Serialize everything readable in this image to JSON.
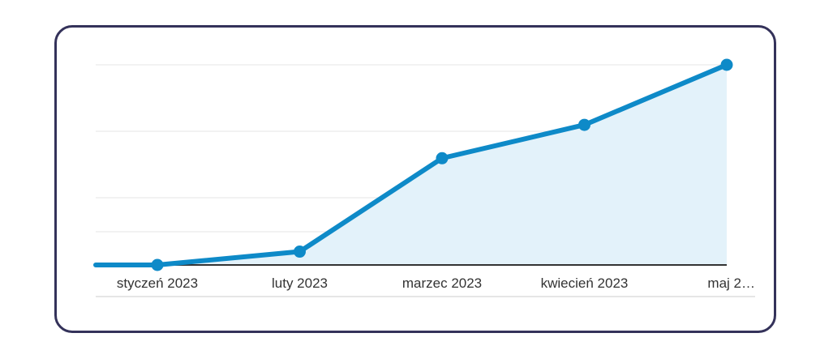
{
  "chart_data": {
    "type": "area",
    "categories": [
      "styczeń 2023",
      "luty 2023",
      "marzec 2023",
      "kwiecień 2023",
      "maj 2…"
    ],
    "series": [
      {
        "values": [
          0,
          2,
          16,
          21,
          30
        ]
      }
    ],
    "ylim": [
      0,
      30
    ],
    "grid": true,
    "colors": {
      "line": "#0e8ac8",
      "fill": "#e3f2fa",
      "grid": "#e6e6e6",
      "axis": "#333333",
      "frame": "#34325a"
    }
  }
}
